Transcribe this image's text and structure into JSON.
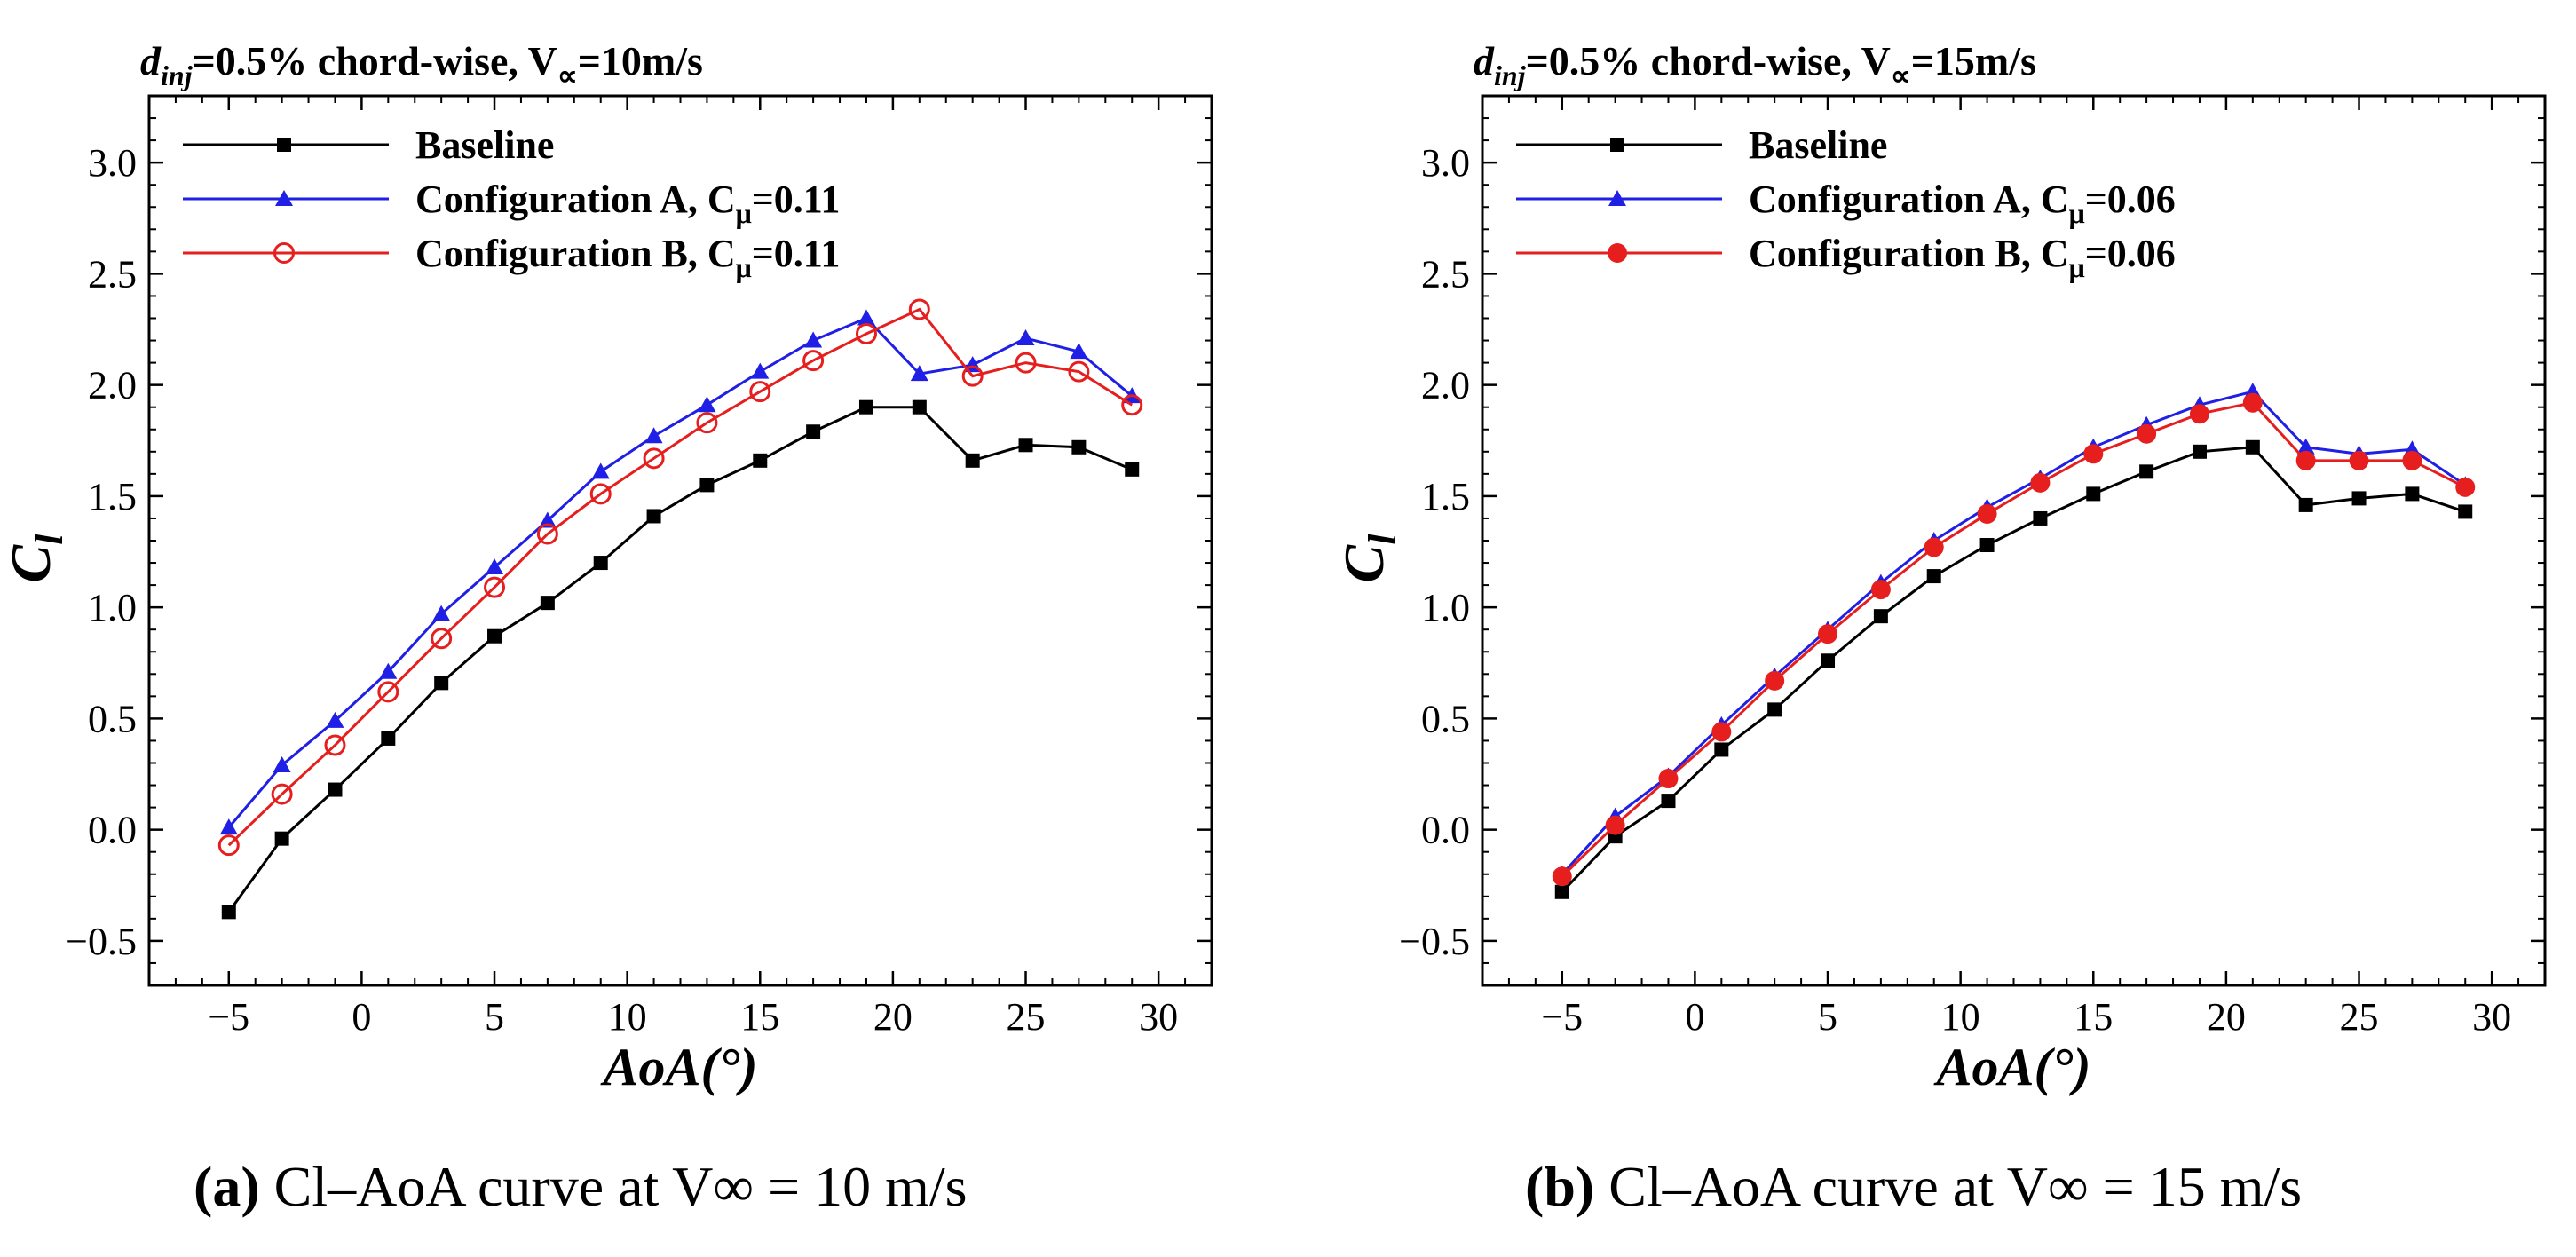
{
  "captions": [
    {
      "label": "(a)",
      "text": "Cl–AoA curve at V∞ = 10 m/s"
    },
    {
      "label": "(b)",
      "text": "Cl–AoA curve at V∞ = 15 m/s"
    }
  ],
  "chart_data": [
    {
      "type": "line",
      "title": "dinj=0.5% chord-wise, V∝=10m/s",
      "xlabel": "AoA(°)",
      "ylabel": "Cl",
      "xlim": [
        -8,
        32
      ],
      "ylim": [
        -0.7,
        3.3
      ],
      "xticks": [
        -5,
        0,
        5,
        10,
        15,
        20,
        25,
        30
      ],
      "xtick_labels": [
        "−5",
        "0",
        "5",
        "10",
        "15",
        "20",
        "25",
        "30"
      ],
      "yticks": [
        -0.5,
        0.0,
        0.5,
        1.0,
        1.5,
        2.0,
        2.5,
        3.0
      ],
      "ytick_labels": [
        "−0.5",
        "0.0",
        "0.5",
        "1.0",
        "1.5",
        "2.0",
        "2.5",
        "3.0"
      ],
      "grid": false,
      "legend_position": "top-left",
      "x": [
        -5,
        -3,
        -1,
        1,
        3,
        5,
        7,
        9,
        11,
        13,
        15,
        17,
        19,
        21,
        23,
        25,
        27,
        29
      ],
      "series": [
        {
          "name": "Baseline",
          "color": "#000000",
          "marker": "square",
          "values": [
            -0.37,
            -0.04,
            0.18,
            0.41,
            0.66,
            0.87,
            1.02,
            1.2,
            1.41,
            1.55,
            1.66,
            1.79,
            1.9,
            1.9,
            1.66,
            1.73,
            1.72,
            1.62
          ]
        },
        {
          "name": "Configuration A, Cμ=0.11",
          "color": "#1f1fe6",
          "marker": "triangle",
          "values": [
            0.01,
            0.29,
            0.49,
            0.71,
            0.97,
            1.18,
            1.39,
            1.61,
            1.77,
            1.91,
            2.06,
            2.2,
            2.3,
            2.05,
            2.09,
            2.21,
            2.15,
            1.95
          ]
        },
        {
          "name": "Configuration B, Cμ=0.11",
          "color": "#e61e1e",
          "marker": "circle-open",
          "values": [
            -0.07,
            0.16,
            0.38,
            0.62,
            0.86,
            1.09,
            1.33,
            1.51,
            1.67,
            1.83,
            1.97,
            2.11,
            2.23,
            2.34,
            2.04,
            2.1,
            2.06,
            1.91
          ]
        }
      ]
    },
    {
      "type": "line",
      "title": "dinj=0.5% chord-wise, V∝=15m/s",
      "xlabel": "AoA(°)",
      "ylabel": "Cl",
      "xlim": [
        -8,
        32
      ],
      "ylim": [
        -0.7,
        3.3
      ],
      "xticks": [
        -5,
        0,
        5,
        10,
        15,
        20,
        25,
        30
      ],
      "xtick_labels": [
        "−5",
        "0",
        "5",
        "10",
        "15",
        "20",
        "25",
        "30"
      ],
      "yticks": [
        -0.5,
        0.0,
        0.5,
        1.0,
        1.5,
        2.0,
        2.5,
        3.0
      ],
      "ytick_labels": [
        "−0.5",
        "0.0",
        "0.5",
        "1.0",
        "1.5",
        "2.0",
        "2.5",
        "3.0"
      ],
      "grid": false,
      "legend_position": "top-left",
      "x": [
        -5,
        -3,
        -1,
        1,
        3,
        5,
        7,
        9,
        11,
        13,
        15,
        17,
        19,
        21,
        23,
        25,
        27,
        29
      ],
      "series": [
        {
          "name": "Baseline",
          "color": "#000000",
          "marker": "square",
          "values": [
            -0.28,
            -0.03,
            0.13,
            0.36,
            0.54,
            0.76,
            0.96,
            1.14,
            1.28,
            1.4,
            1.51,
            1.61,
            1.7,
            1.72,
            1.46,
            1.49,
            1.51,
            1.43
          ]
        },
        {
          "name": "Configuration A, Cμ=0.06",
          "color": "#1f1fe6",
          "marker": "triangle",
          "values": [
            -0.2,
            0.06,
            0.24,
            0.47,
            0.69,
            0.9,
            1.11,
            1.3,
            1.45,
            1.58,
            1.72,
            1.82,
            1.91,
            1.97,
            1.72,
            1.69,
            1.71,
            1.55
          ]
        },
        {
          "name": "Configuration B, Cμ=0.06",
          "color": "#e61e1e",
          "marker": "circle-filled",
          "values": [
            -0.21,
            0.02,
            0.23,
            0.44,
            0.67,
            0.88,
            1.08,
            1.27,
            1.42,
            1.56,
            1.69,
            1.78,
            1.87,
            1.92,
            1.66,
            1.66,
            1.66,
            1.54
          ]
        }
      ]
    }
  ]
}
